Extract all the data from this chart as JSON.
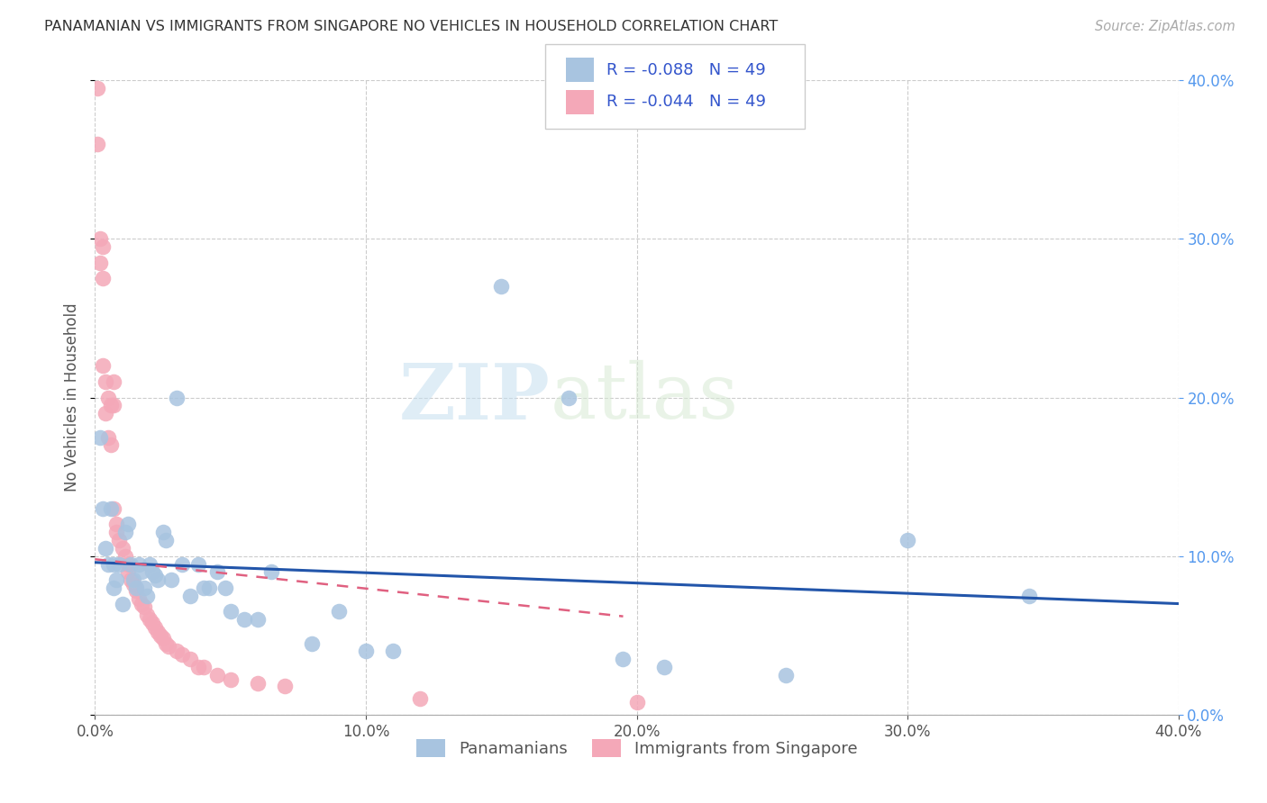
{
  "title": "PANAMANIAN VS IMMIGRANTS FROM SINGAPORE NO VEHICLES IN HOUSEHOLD CORRELATION CHART",
  "source": "Source: ZipAtlas.com",
  "ylabel": "No Vehicles in Household",
  "xlim": [
    0.0,
    0.4
  ],
  "ylim": [
    0.0,
    0.4
  ],
  "xtick_vals": [
    0.0,
    0.1,
    0.2,
    0.3,
    0.4
  ],
  "ytick_vals": [
    0.0,
    0.1,
    0.2,
    0.3,
    0.4
  ],
  "blue_color": "#a8c4e0",
  "pink_color": "#f4a8b8",
  "blue_line_color": "#2255aa",
  "pink_line_color": "#e06080",
  "legend_R_blue": "-0.088",
  "legend_N_blue": "49",
  "legend_R_pink": "-0.044",
  "legend_N_pink": "49",
  "watermark_zip": "ZIP",
  "watermark_atlas": "atlas",
  "legend_label_blue": "Panamanians",
  "legend_label_pink": "Immigrants from Singapore",
  "blue_scatter_x": [
    0.002,
    0.003,
    0.004,
    0.005,
    0.006,
    0.007,
    0.007,
    0.008,
    0.009,
    0.01,
    0.011,
    0.012,
    0.013,
    0.014,
    0.015,
    0.016,
    0.017,
    0.018,
    0.019,
    0.02,
    0.021,
    0.022,
    0.023,
    0.025,
    0.026,
    0.028,
    0.03,
    0.032,
    0.035,
    0.038,
    0.04,
    0.042,
    0.045,
    0.048,
    0.05,
    0.055,
    0.06,
    0.065,
    0.08,
    0.09,
    0.1,
    0.11,
    0.15,
    0.175,
    0.195,
    0.21,
    0.255,
    0.3,
    0.345
  ],
  "blue_scatter_y": [
    0.175,
    0.13,
    0.105,
    0.095,
    0.13,
    0.095,
    0.08,
    0.085,
    0.095,
    0.07,
    0.115,
    0.12,
    0.095,
    0.085,
    0.08,
    0.095,
    0.09,
    0.08,
    0.075,
    0.095,
    0.09,
    0.088,
    0.085,
    0.115,
    0.11,
    0.085,
    0.2,
    0.095,
    0.075,
    0.095,
    0.08,
    0.08,
    0.09,
    0.08,
    0.065,
    0.06,
    0.06,
    0.09,
    0.045,
    0.065,
    0.04,
    0.04,
    0.27,
    0.2,
    0.035,
    0.03,
    0.025,
    0.11,
    0.075
  ],
  "pink_scatter_x": [
    0.001,
    0.001,
    0.002,
    0.002,
    0.003,
    0.003,
    0.003,
    0.004,
    0.004,
    0.005,
    0.005,
    0.006,
    0.006,
    0.007,
    0.007,
    0.007,
    0.008,
    0.008,
    0.009,
    0.01,
    0.011,
    0.012,
    0.012,
    0.013,
    0.014,
    0.015,
    0.016,
    0.017,
    0.018,
    0.019,
    0.02,
    0.021,
    0.022,
    0.023,
    0.024,
    0.025,
    0.026,
    0.027,
    0.03,
    0.032,
    0.035,
    0.038,
    0.04,
    0.045,
    0.05,
    0.06,
    0.07,
    0.12,
    0.2
  ],
  "pink_scatter_y": [
    0.395,
    0.36,
    0.3,
    0.285,
    0.295,
    0.275,
    0.22,
    0.21,
    0.19,
    0.2,
    0.175,
    0.195,
    0.17,
    0.21,
    0.195,
    0.13,
    0.12,
    0.115,
    0.11,
    0.105,
    0.1,
    0.095,
    0.09,
    0.085,
    0.082,
    0.078,
    0.073,
    0.07,
    0.068,
    0.063,
    0.06,
    0.058,
    0.055,
    0.052,
    0.05,
    0.048,
    0.045,
    0.043,
    0.04,
    0.038,
    0.035,
    0.03,
    0.03,
    0.025,
    0.022,
    0.02,
    0.018,
    0.01,
    0.008
  ],
  "blue_trend_x": [
    0.0,
    0.4
  ],
  "blue_trend_y_start": 0.096,
  "blue_trend_y_end": 0.07,
  "pink_trend_x": [
    0.0,
    0.195
  ],
  "pink_trend_y_start": 0.098,
  "pink_trend_y_end": 0.062
}
